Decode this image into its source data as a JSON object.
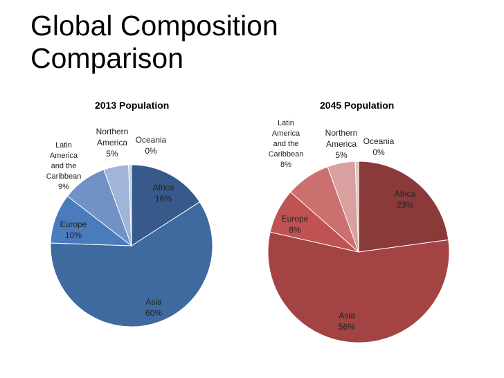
{
  "slide": {
    "title_line1": "Global Composition",
    "title_line2": "Comparison"
  },
  "chart_data": [
    {
      "type": "pie",
      "title": "2013 Population",
      "slices": [
        {
          "label": [
            "Africa"
          ],
          "value": 16,
          "pct": "16%",
          "color": "#375a8b"
        },
        {
          "label": [
            "Asia"
          ],
          "value": 60,
          "pct": "60%",
          "color": "#3f6aa0"
        },
        {
          "label": [
            "Europe"
          ],
          "value": 10,
          "pct": "10%",
          "color": "#4a7bbd"
        },
        {
          "label": [
            "Latin",
            "America",
            "and the",
            "Caribbean"
          ],
          "value": 9,
          "pct": "9%",
          "color": "#7092c4"
        },
        {
          "label": [
            "Northern",
            "America"
          ],
          "value": 5,
          "pct": "5%",
          "color": "#a0b5d8"
        },
        {
          "label": [
            "Oceania"
          ],
          "value": 0,
          "pct": "0%",
          "color": "#c7d2e8"
        }
      ]
    },
    {
      "type": "pie",
      "title": "2045 Population",
      "slices": [
        {
          "label": [
            "Africa"
          ],
          "value": 23,
          "pct": "23%",
          "color": "#8b3a3a"
        },
        {
          "label": [
            "Asia"
          ],
          "value": 56,
          "pct": "56%",
          "color": "#a34343"
        },
        {
          "label": [
            "Europe"
          ],
          "value": 8,
          "pct": "8%",
          "color": "#bf5252"
        },
        {
          "label": [
            "Latin",
            "America",
            "and the",
            "Caribbean"
          ],
          "value": 8,
          "pct": "8%",
          "color": "#cc6f6f"
        },
        {
          "label": [
            "Northern",
            "America"
          ],
          "value": 5,
          "pct": "5%",
          "color": "#d9a0a0"
        },
        {
          "label": [
            "Oceania"
          ],
          "value": 0,
          "pct": "0%",
          "color": "#e6c2c2"
        }
      ]
    }
  ]
}
